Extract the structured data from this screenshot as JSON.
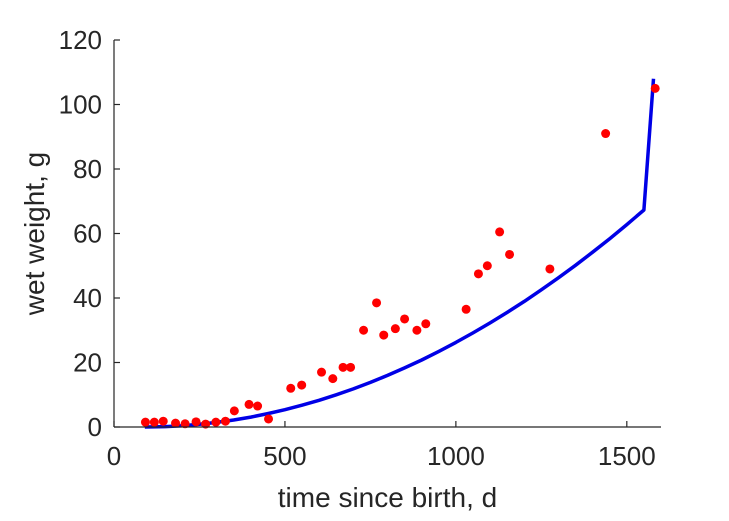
{
  "chart_data": {
    "type": "scatter",
    "title": "",
    "xlabel": "time since birth, d",
    "ylabel": "wet weight, g",
    "xlim": [
      0,
      1600
    ],
    "ylim": [
      0,
      120
    ],
    "xticks": [
      0,
      500,
      1000,
      1500
    ],
    "yticks": [
      0,
      20,
      40,
      60,
      80,
      100,
      120
    ],
    "grid": false,
    "colors": {
      "points": "#ff0000",
      "curve": "#0000e6",
      "axis": "#262626"
    },
    "series": [
      {
        "type": "scatter",
        "x": [
          92,
          118,
          144,
          180,
          208,
          240,
          268,
          298,
          326,
          352,
          395,
          420,
          452,
          517,
          549,
          607,
          640,
          670,
          692,
          730,
          768,
          789,
          823,
          850,
          886,
          912,
          1030,
          1066,
          1092,
          1128,
          1157,
          1275,
          1438,
          1583
        ],
        "y": [
          1.5,
          1.5,
          1.8,
          1.2,
          1.0,
          1.6,
          0.9,
          1.5,
          1.8,
          5.0,
          7.0,
          6.5,
          2.5,
          12.0,
          13.0,
          17.0,
          15.0,
          18.5,
          18.5,
          30.0,
          38.5,
          28.5,
          30.5,
          33.5,
          30.0,
          32.0,
          36.5,
          47.5,
          50.0,
          60.5,
          53.5,
          49.0,
          91.0,
          105.0
        ]
      },
      {
        "type": "line",
        "x": [
          90,
          150,
          200,
          250,
          300,
          350,
          400,
          450,
          500,
          550,
          600,
          650,
          700,
          750,
          800,
          850,
          900,
          950,
          1000,
          1050,
          1100,
          1150,
          1200,
          1250,
          1300,
          1350,
          1400,
          1450,
          1500,
          1550,
          1578
        ],
        "y": [
          0.0,
          0.12,
          0.39,
          0.83,
          1.42,
          2.17,
          3.08,
          4.14,
          5.37,
          6.75,
          8.28,
          9.97,
          11.82,
          13.83,
          16.0,
          18.32,
          20.79,
          23.43,
          26.22,
          29.17,
          32.27,
          35.53,
          38.95,
          42.53,
          46.26,
          50.15,
          54.2,
          58.4,
          62.76,
          67.28,
          108.0
        ]
      }
    ]
  }
}
